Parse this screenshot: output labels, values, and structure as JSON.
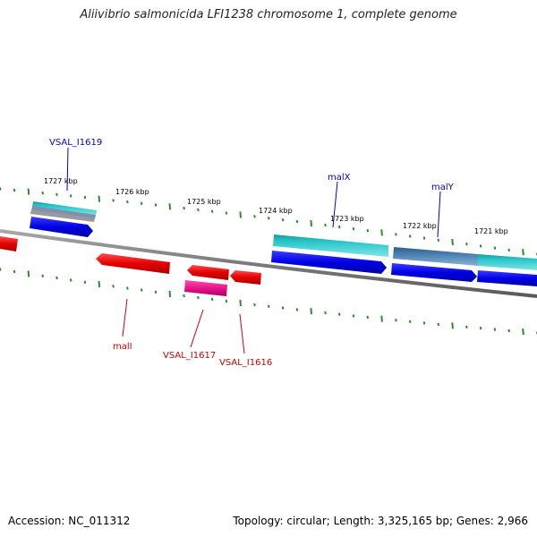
{
  "title": "Aliivibrio salmonicida LFI1238 chromosome 1, complete genome",
  "tick_labels": [
    "1727 kbp",
    "1726 kbp",
    "1725 kbp",
    "1724 kbp",
    "1723 kbp",
    "1722 kbp",
    "1721 kbp"
  ],
  "gene_labels": {
    "top": [
      "VSAL_I1619",
      "malX",
      "malY"
    ],
    "bottom": [
      "malI",
      "VSAL_I1617",
      "VSAL_I1616"
    ]
  },
  "colors": {
    "forward_cds": "#0000e6",
    "reverse_cds": "#e60000",
    "forward_feature": "#1fc2c8",
    "reverse_feature": "#e6148c",
    "highlight_feature": "#4a7fb0",
    "backbone": "#888888",
    "tick": "#2e8b2e",
    "top_label_color": "#0000cc",
    "bottom_label_color": "#cc0000"
  },
  "footer": {
    "accession": "Accession: NC_011312",
    "info": "Topology: circular; Length: 3,325,165 bp; Genes: 2,966"
  }
}
